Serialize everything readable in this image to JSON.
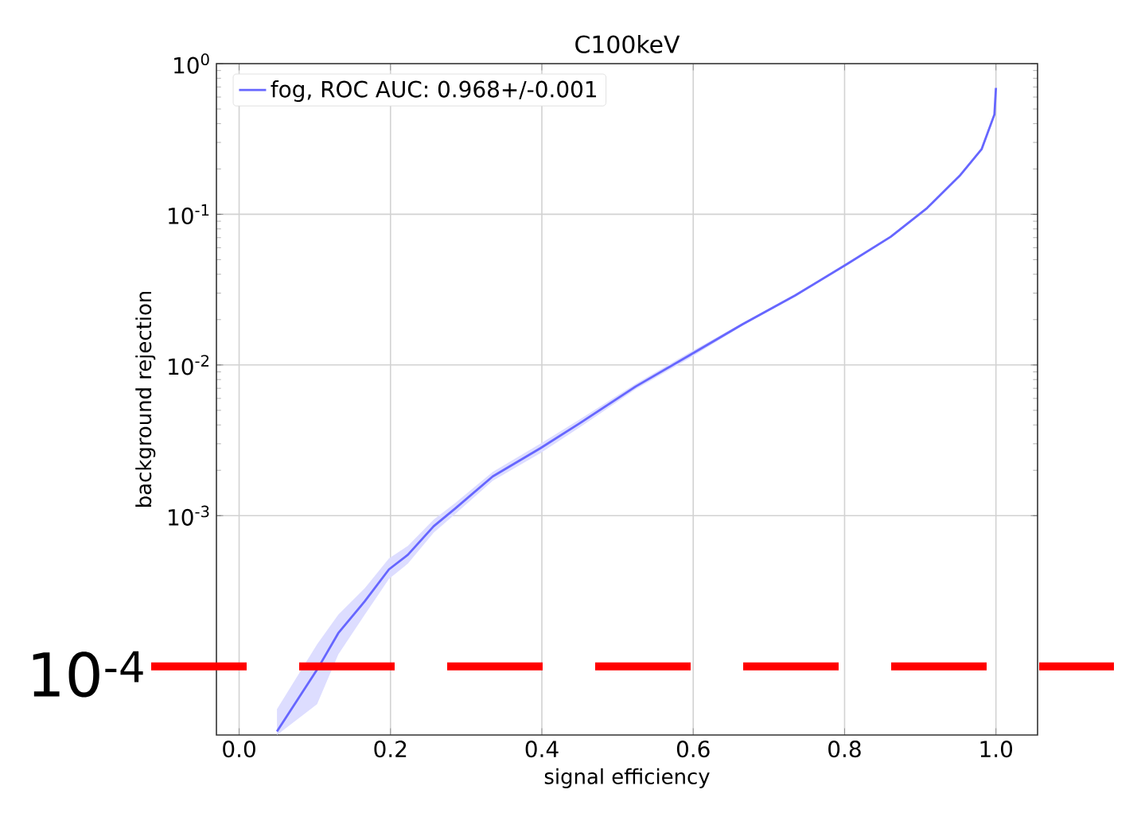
{
  "chart_data": {
    "type": "line",
    "title": "C100keV",
    "xlabel": "signal efficiency",
    "ylabel": "background rejection",
    "log": "y",
    "grid": true,
    "legend": "top left",
    "line_style": "solid",
    "marker": "none",
    "xlim": [
      -0.03,
      1.055
    ],
    "ylim": [
      3.5e-05,
      1
    ],
    "xticks": [
      {
        "value": 0,
        "label": "0.0"
      },
      0.2,
      0.4,
      0.6,
      0.8,
      {
        "value": 1,
        "label": "1.0"
      }
    ],
    "yticks": [
      {
        "value": 0.001,
        "label": "10$^{-3}$"
      },
      {
        "value": 0.01,
        "label": "10$^{-2}$"
      },
      {
        "value": 0.1,
        "label": "10$^{-1}$"
      },
      {
        "value": 1,
        "label": "10$^{0}$"
      }
    ],
    "ref_lines": [
      {
        "axis": "y",
        "value": 0.0001,
        "color": "#ff0000",
        "line_style": "dashed"
      }
    ],
    "annotations": [
      "10$^{-4}$"
    ],
    "series": [
      {
        "name": "fog, ROC AUC: 0.968+/-0.001",
        "color": "#6666ff",
        "x": [
          0.05,
          0.103,
          0.131,
          0.166,
          0.198,
          0.223,
          0.257,
          0.286,
          0.335,
          0.398,
          0.45,
          0.524,
          0.594,
          0.665,
          0.735,
          0.804,
          0.861,
          0.909,
          0.952,
          0.981,
          0.998,
          1.0
        ],
        "values": [
          3.7e-05,
          9.5e-05,
          0.000166,
          0.00027,
          0.00044,
          0.00055,
          0.00085,
          0.00112,
          0.00182,
          0.0028,
          0.0041,
          0.0072,
          0.0115,
          0.0186,
          0.029,
          0.047,
          0.071,
          0.11,
          0.18,
          0.27,
          0.46,
          0.69
        ],
        "lower": [
          3.5e-05,
          5.6e-05,
          0.00012,
          0.00022,
          0.00038,
          0.00048,
          0.00077,
          0.00103,
          0.0017,
          0.0026,
          0.00385,
          0.0069,
          0.011,
          0.0182,
          0.0285,
          0.0465,
          0.07,
          0.109,
          0.178,
          0.267,
          0.455,
          0.68
        ],
        "upper": [
          5.2e-05,
          0.00014,
          0.00022,
          0.00033,
          0.00052,
          0.00063,
          0.00094,
          0.00122,
          0.00195,
          0.003,
          0.00435,
          0.0075,
          0.012,
          0.019,
          0.0295,
          0.0475,
          0.072,
          0.111,
          0.182,
          0.273,
          0.465,
          0.7
        ]
      }
    ]
  }
}
